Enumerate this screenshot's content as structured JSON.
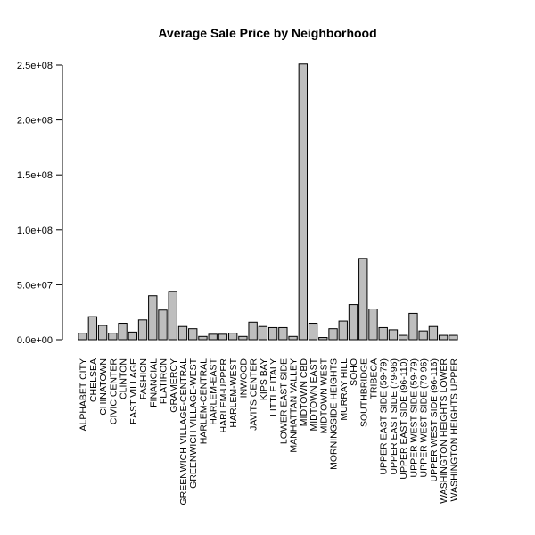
{
  "chart_data": {
    "type": "bar",
    "title": "Average Sale Price by Neighborhood",
    "xlabel": "",
    "ylabel": "",
    "ylim": [
      0,
      265000000
    ],
    "yticks": [
      0,
      50000000,
      100000000,
      150000000,
      200000000,
      250000000
    ],
    "ytick_labels": [
      "0.0e+00",
      "5.0e+07",
      "1.0e+08",
      "1.5e+08",
      "2.0e+08",
      "2.5e+08"
    ],
    "grid": false,
    "legend": "none",
    "colors": {
      "bar_fill": "#bebebe",
      "bar_stroke": "#000000",
      "axis": "#000000",
      "background": "#ffffff"
    },
    "categories": [
      "ALPHABET CITY",
      "CHELSEA",
      "CHINATOWN",
      "CIVIC CENTER",
      "CLINTON",
      "EAST VILLAGE",
      "FASHION",
      "FINANCIAL",
      "FLATIRON",
      "GRAMERCY",
      "GREENWICH VILLAGE-CENTRAL",
      "GREENWICH VILLAGE-WEST",
      "HARLEM-CENTRAL",
      "HARLEM-EAST",
      "HARLEM-UPPER",
      "HARLEM-WEST",
      "INWOOD",
      "JAVITS CENTER",
      "KIPS BAY",
      "LITTLE ITALY",
      "LOWER EAST SIDE",
      "MANHATTAN VALLEY",
      "MIDTOWN CBD",
      "MIDTOWN EAST",
      "MIDTOWN WEST",
      "MORNINGSIDE HEIGHTS",
      "MURRAY HILL",
      "SOHO",
      "SOUTHBRIDGE",
      "TRIBECA",
      "UPPER EAST SIDE (59-79)",
      "UPPER EAST SIDE (79-96)",
      "UPPER EAST SIDE (96-110)",
      "UPPER WEST SIDE (59-79)",
      "UPPER WEST SIDE (79-96)",
      "UPPER WEST SIDE (96-116)",
      "WASHINGTON HEIGHTS LOWER",
      "WASHINGTON HEIGHTS UPPER"
    ],
    "values": [
      6000000,
      21000000,
      13000000,
      6000000,
      15000000,
      7000000,
      18000000,
      40000000,
      27000000,
      44000000,
      12000000,
      10000000,
      3000000,
      5000000,
      5000000,
      6000000,
      3000000,
      16000000,
      12000000,
      11000000,
      11000000,
      3000000,
      251000000,
      15000000,
      2000000,
      10000000,
      17000000,
      32000000,
      74000000,
      28000000,
      11000000,
      9000000,
      4000000,
      24000000,
      8000000,
      12000000,
      4000000,
      4000000
    ]
  }
}
